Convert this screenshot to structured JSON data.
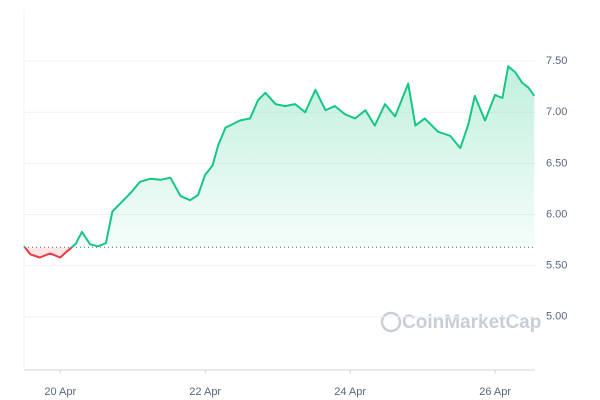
{
  "chart_data": {
    "type": "line",
    "baseline": 5.68,
    "watermark": "CoinMarketCap",
    "xlim": [
      19.5,
      26.55
    ],
    "xticks": [
      {
        "value": 20,
        "label": "20 Apr"
      },
      {
        "value": 22,
        "label": "22 Apr"
      },
      {
        "value": 24,
        "label": "24 Apr"
      },
      {
        "value": 26,
        "label": "26 Apr"
      }
    ],
    "ylim": [
      4.48,
      8.0
    ],
    "yticks": [
      {
        "value": 5,
        "label": "5.00"
      },
      {
        "value": 5.5,
        "label": "5.50"
      },
      {
        "value": 6,
        "label": "6.00"
      },
      {
        "value": 6.5,
        "label": "6.50"
      },
      {
        "value": 7,
        "label": "7.00"
      },
      {
        "value": 7.5,
        "label": "7.50"
      }
    ],
    "grid": true,
    "up_color": "#16c784",
    "down_color": "#ea3943",
    "x": [
      19.5,
      19.59,
      19.72,
      19.86,
      20.0,
      20.11,
      20.21,
      20.3,
      20.41,
      20.52,
      20.63,
      20.72,
      20.83,
      20.97,
      21.1,
      21.24,
      21.38,
      21.52,
      21.66,
      21.79,
      21.9,
      22.0,
      22.1,
      22.18,
      22.28,
      22.37,
      22.48,
      22.62,
      22.73,
      22.83,
      22.97,
      23.1,
      23.24,
      23.38,
      23.52,
      23.66,
      23.79,
      23.93,
      24.07,
      24.21,
      24.34,
      24.48,
      24.62,
      24.8,
      24.9,
      25.03,
      25.21,
      25.38,
      25.52,
      25.63,
      25.72,
      25.86,
      26.0,
      26.1,
      26.18,
      26.28,
      26.37,
      26.46,
      26.54
    ],
    "values": [
      5.69,
      5.61,
      5.58,
      5.62,
      5.58,
      5.65,
      5.71,
      5.83,
      5.71,
      5.69,
      5.72,
      6.03,
      6.11,
      6.21,
      6.32,
      6.35,
      6.34,
      6.36,
      6.18,
      6.14,
      6.19,
      6.39,
      6.48,
      6.68,
      6.85,
      6.88,
      6.92,
      6.94,
      7.12,
      7.19,
      7.08,
      7.06,
      7.08,
      7.0,
      7.22,
      7.02,
      7.06,
      6.98,
      6.94,
      7.02,
      6.87,
      7.08,
      6.96,
      7.28,
      6.87,
      6.94,
      6.81,
      6.77,
      6.65,
      6.88,
      7.16,
      6.92,
      7.17,
      7.14,
      7.45,
      7.39,
      7.29,
      7.24,
      7.16
    ]
  }
}
